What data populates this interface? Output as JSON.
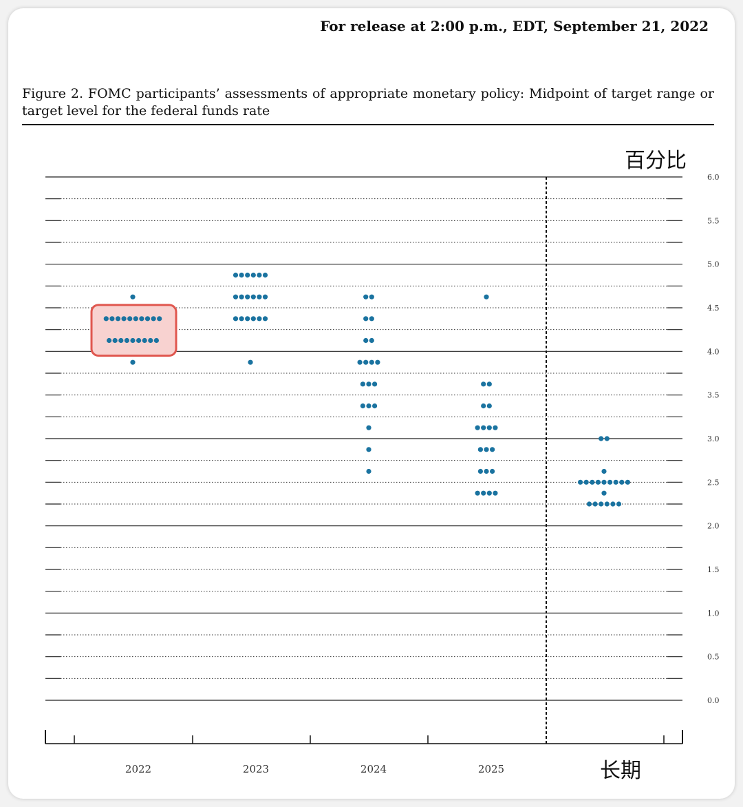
{
  "header": {
    "release": "For release at 2:00 p.m., EDT, September 21, 2022"
  },
  "caption": "Figure 2.  FOMC participants’ assessments of appropriate monetary policy:  Midpoint of target range or target level for the federal funds rate",
  "chart_data": {
    "type": "scatter",
    "title": "",
    "ylabel": "百分比",
    "ylim": [
      0,
      6
    ],
    "y_tick_labels": [
      "0.0",
      "0.5",
      "1.0",
      "1.5",
      "2.0",
      "2.5",
      "3.0",
      "3.5",
      "4.0",
      "4.5",
      "5.0",
      "5.5",
      "6.0"
    ],
    "y_grid_step": 0.25,
    "categories": [
      "2022",
      "2023",
      "2024",
      "2025",
      "长期"
    ],
    "dot_color": "#1a73a0",
    "highlight": {
      "category": "2022",
      "y_range": [
        4.125,
        4.375
      ],
      "stroke": "#e0574f",
      "fill": "#f8d2d0"
    },
    "series": [
      {
        "name": "2022",
        "points": [
          {
            "y": 4.625,
            "count": 1
          },
          {
            "y": 4.375,
            "count": 10
          },
          {
            "y": 4.125,
            "count": 9
          },
          {
            "y": 3.875,
            "count": 1
          }
        ]
      },
      {
        "name": "2023",
        "points": [
          {
            "y": 4.875,
            "count": 6
          },
          {
            "y": 4.625,
            "count": 6
          },
          {
            "y": 4.375,
            "count": 6
          },
          {
            "y": 3.875,
            "count": 1
          }
        ]
      },
      {
        "name": "2024",
        "points": [
          {
            "y": 4.625,
            "count": 2
          },
          {
            "y": 4.375,
            "count": 2
          },
          {
            "y": 4.125,
            "count": 2
          },
          {
            "y": 3.875,
            "count": 4
          },
          {
            "y": 3.625,
            "count": 3
          },
          {
            "y": 3.375,
            "count": 3
          },
          {
            "y": 3.125,
            "count": 1
          },
          {
            "y": 2.875,
            "count": 1
          },
          {
            "y": 2.625,
            "count": 1
          }
        ]
      },
      {
        "name": "2025",
        "points": [
          {
            "y": 4.625,
            "count": 1
          },
          {
            "y": 3.625,
            "count": 2
          },
          {
            "y": 3.375,
            "count": 2
          },
          {
            "y": 3.125,
            "count": 4
          },
          {
            "y": 2.875,
            "count": 3
          },
          {
            "y": 2.625,
            "count": 3
          },
          {
            "y": 2.375,
            "count": 4
          }
        ]
      },
      {
        "name": "长期",
        "points": [
          {
            "y": 3.0,
            "count": 2
          },
          {
            "y": 2.625,
            "count": 1
          },
          {
            "y": 2.5,
            "count": 9
          },
          {
            "y": 2.375,
            "count": 1
          },
          {
            "y": 2.25,
            "count": 6
          }
        ]
      }
    ],
    "grid": true,
    "longer_run_separator": "dashed"
  }
}
